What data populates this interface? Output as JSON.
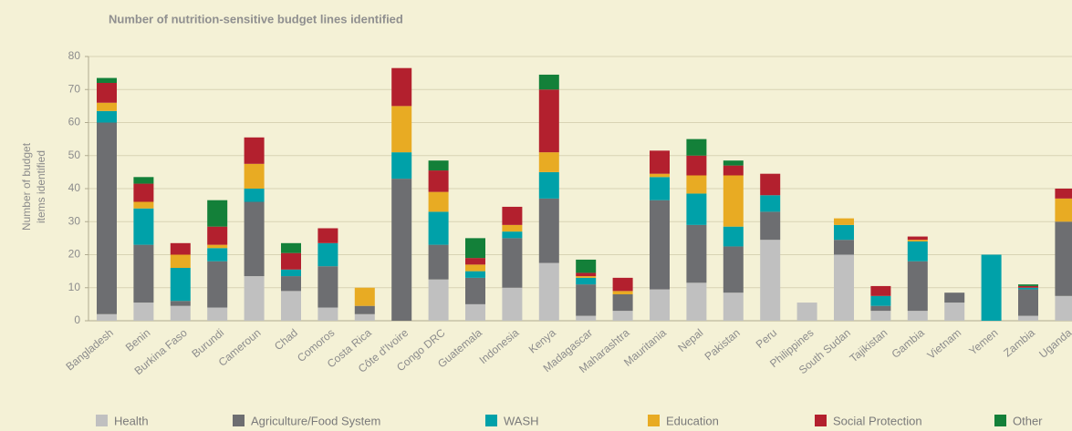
{
  "chart_data": {
    "type": "stacked_bar",
    "title": "Number of nutrition-sensitive budget lines identified",
    "ylabel": [
      "Number of budget",
      "items identified"
    ],
    "categories": [
      "Bangladesh",
      "Benin",
      "Burkina Faso",
      "Burundi",
      "Cameroun",
      "Chad",
      "Comoros",
      "Costa Rica",
      "Côte d'Ivoire",
      "Congo DRC",
      "Guatemala",
      "Indonesia",
      "Kenya",
      "Madagascar",
      "Maharashtra",
      "Mauritania",
      "Nepal",
      "Pakistan",
      "Peru",
      "Philippines",
      "South Sudan",
      "Tajikistan",
      "Gambia",
      "Vietnam",
      "Yemen",
      "Zambia",
      "Uganda"
    ],
    "series": [
      {
        "name": "Health",
        "color": "#c0c0c0",
        "values": [
          2,
          5.5,
          4.5,
          4,
          13.5,
          9,
          4,
          2,
          0,
          12.5,
          5,
          10,
          17.5,
          1.5,
          3,
          9.5,
          11.5,
          8.5,
          24.5,
          5.5,
          20,
          3,
          3,
          5.5,
          0,
          1.5,
          7.5
        ]
      },
      {
        "name": "Agriculture/Food System",
        "color": "#6d6e71",
        "values": [
          58,
          17.5,
          1.5,
          14,
          22.5,
          4.5,
          12.5,
          2.5,
          43,
          10.5,
          8,
          15,
          19.5,
          9.5,
          5,
          27,
          17.5,
          14,
          8.5,
          0,
          4.5,
          1.5,
          15,
          3,
          0,
          8,
          22.5
        ]
      },
      {
        "name": "WASH",
        "color": "#00a1a9",
        "values": [
          3.5,
          11,
          10,
          4,
          4,
          2,
          7,
          0,
          8,
          10,
          2,
          2,
          8,
          2,
          0,
          7,
          9.5,
          6,
          5,
          0,
          4.5,
          3,
          6,
          0,
          20,
          0.5,
          0
        ]
      },
      {
        "name": "Education",
        "color": "#e8ab23",
        "values": [
          2.5,
          2,
          4,
          1,
          7.5,
          0,
          0,
          5.5,
          14,
          6,
          2,
          2,
          6,
          0.5,
          1,
          1,
          5.5,
          15.5,
          0,
          0,
          2,
          0,
          0.5,
          0,
          0,
          0,
          7
        ]
      },
      {
        "name": "Social Protection",
        "color": "#b3202e",
        "values": [
          6,
          5.5,
          3.5,
          5.5,
          8,
          5,
          4.5,
          0,
          11.5,
          6.5,
          2,
          5.5,
          19,
          1,
          4,
          7,
          6,
          3,
          6.5,
          0,
          0,
          3,
          1,
          0,
          0,
          0.5,
          3
        ]
      },
      {
        "name": "Other",
        "color": "#138039",
        "values": [
          1.5,
          2,
          0,
          8,
          0,
          3,
          0,
          0,
          0,
          3,
          6,
          0,
          4.5,
          4,
          0,
          0,
          5,
          1.5,
          0,
          0,
          0,
          0,
          0,
          0,
          0,
          0.5,
          0
        ]
      }
    ],
    "ylim": [
      0,
      80
    ],
    "yticks": [
      0,
      10,
      20,
      30,
      40,
      50,
      60,
      70,
      80
    ],
    "grid": true
  }
}
